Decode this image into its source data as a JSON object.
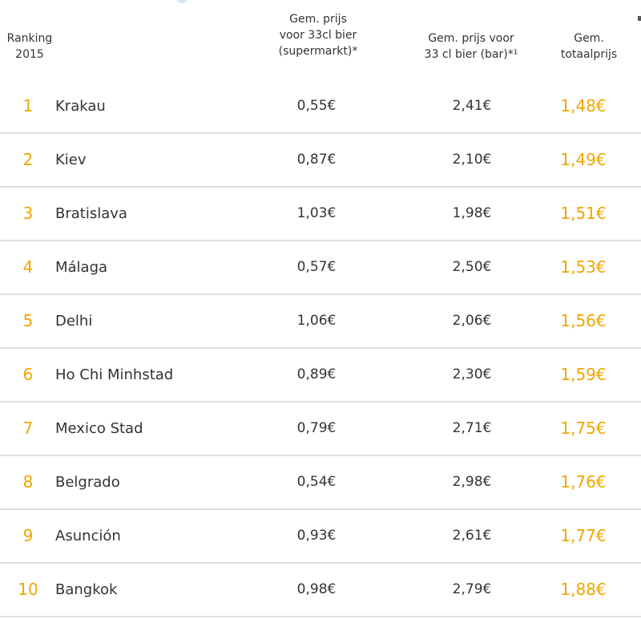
{
  "table": {
    "headers": {
      "rank": "Ranking\n2015",
      "supermarket": "Gem. prijs\nvoor 33cl bier\n(supermarkt)*",
      "bar": "Gem. prijs voor\n33 cl bier (bar)*¹",
      "total": "Gem.\ntotaalprijs"
    },
    "rows": [
      {
        "rank": "1",
        "city": "Krakau",
        "supermarket": "0,55€",
        "bar": "2,41€",
        "total": "1,48€"
      },
      {
        "rank": "2",
        "city": "Kiev",
        "supermarket": "0,87€",
        "bar": "2,10€",
        "total": "1,49€"
      },
      {
        "rank": "3",
        "city": "Bratislava",
        "supermarket": "1,03€",
        "bar": "1,98€",
        "total": "1,51€"
      },
      {
        "rank": "4",
        "city": "Málaga",
        "supermarket": "0,57€",
        "bar": "2,50€",
        "total": "1,53€"
      },
      {
        "rank": "5",
        "city": "Delhi",
        "supermarket": "1,06€",
        "bar": "2,06€",
        "total": "1,56€"
      },
      {
        "rank": "6",
        "city": "Ho Chi Minhstad",
        "supermarket": "0,89€",
        "bar": "2,30€",
        "total": "1,59€"
      },
      {
        "rank": "7",
        "city": "Mexico Stad",
        "supermarket": "0,79€",
        "bar": "2,71€",
        "total": "1,75€"
      },
      {
        "rank": "8",
        "city": "Belgrado",
        "supermarket": "0,54€",
        "bar": "2,98€",
        "total": "1,76€"
      },
      {
        "rank": "9",
        "city": "Asunción",
        "supermarket": "0,93€",
        "bar": "2,61€",
        "total": "1,77€"
      },
      {
        "rank": "10",
        "city": "Bangkok",
        "supermarket": "0,98€",
        "bar": "2,79€",
        "total": "1,88€"
      }
    ]
  },
  "colors": {
    "accent": "#f0a500",
    "text": "#333333",
    "divider": "#dddddd"
  }
}
